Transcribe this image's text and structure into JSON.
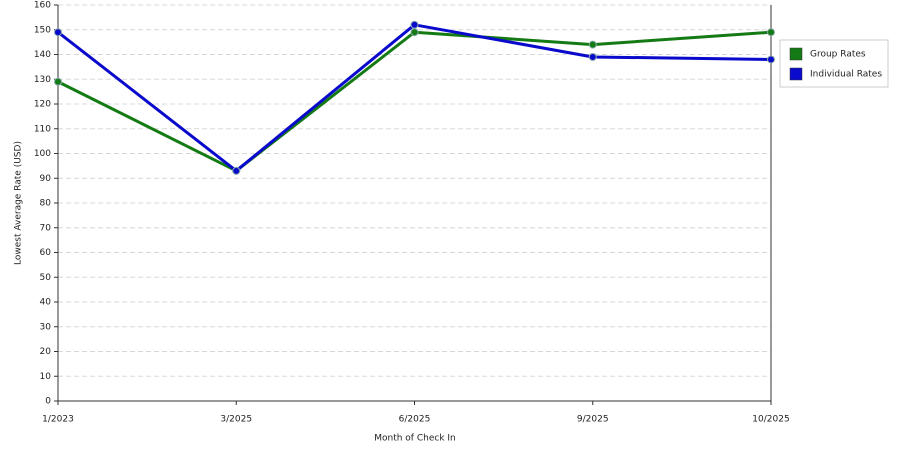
{
  "chart_data": {
    "type": "line",
    "x_label": "Month of Check In",
    "y_label": "Lowest Average Rate (USD)",
    "categories": [
      "1/2023",
      "3/2025",
      "6/2025",
      "9/2025",
      "10/2025"
    ],
    "series": [
      {
        "name": "Group Rates",
        "color": "#147a14",
        "values": [
          129,
          93,
          149,
          144,
          149
        ]
      },
      {
        "name": "Individual Rates",
        "color": "#0a0acc",
        "values": [
          149,
          93,
          152,
          139,
          138
        ]
      }
    ],
    "ylim": [
      0,
      160
    ],
    "yticks": [
      0,
      10,
      20,
      30,
      40,
      50,
      60,
      70,
      80,
      90,
      100,
      110,
      120,
      130,
      140,
      150,
      160
    ],
    "grid": true,
    "legend": "right"
  }
}
